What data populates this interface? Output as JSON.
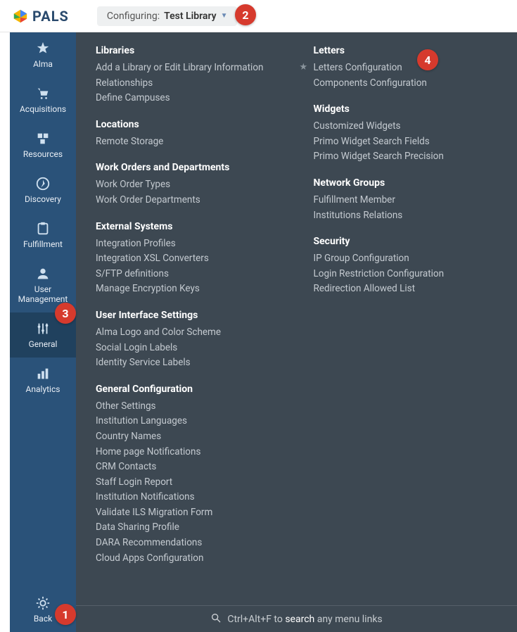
{
  "logo_text": "PALS",
  "config_label": "Configuring:",
  "config_value": "Test Library",
  "annotations": {
    "a1": "1",
    "a2": "2",
    "a3": "3",
    "a4": "4"
  },
  "sidebar": {
    "alma": "Alma",
    "acquisitions": "Acquisitions",
    "resources": "Resources",
    "discovery": "Discovery",
    "fulfillment": "Fulfillment",
    "user_management": "User Management",
    "general": "General",
    "analytics": "Analytics",
    "back": "Back"
  },
  "col1": {
    "libraries": {
      "title": "Libraries",
      "items": [
        "Add a Library or Edit Library Information",
        "Relationships",
        "Define Campuses"
      ]
    },
    "locations": {
      "title": "Locations",
      "items": [
        "Remote Storage"
      ]
    },
    "work_orders": {
      "title": "Work Orders and Departments",
      "items": [
        "Work Order Types",
        "Work Order Departments"
      ]
    },
    "external": {
      "title": "External Systems",
      "items": [
        "Integration Profiles",
        "Integration XSL Converters",
        "S/FTP definitions",
        "Manage Encryption Keys"
      ]
    },
    "ui_settings": {
      "title": "User Interface Settings",
      "items": [
        "Alma Logo and Color Scheme",
        "Social Login Labels",
        "Identity Service Labels"
      ]
    },
    "general_config": {
      "title": "General Configuration",
      "items": [
        "Other Settings",
        "Institution Languages",
        "Country Names",
        "Home page Notifications",
        "CRM Contacts",
        "Staff Login Report",
        "Institution Notifications",
        "Validate ILS Migration Form",
        "Data Sharing Profile",
        "DARA Recommendations",
        "Cloud Apps Configuration"
      ]
    }
  },
  "col2": {
    "letters": {
      "title": "Letters",
      "items": [
        "Letters Configuration",
        "Components Configuration"
      ],
      "starred": 0
    },
    "widgets": {
      "title": "Widgets",
      "items": [
        "Customized Widgets",
        "Primo Widget Search Fields",
        "Primo Widget Search Precision"
      ]
    },
    "network": {
      "title": "Network Groups",
      "items": [
        "Fulfillment Member",
        "Institutions Relations"
      ]
    },
    "security": {
      "title": "Security",
      "items": [
        "IP Group Configuration",
        "Login Restriction Configuration",
        "Redirection Allowed List"
      ]
    }
  },
  "search_hint_pre": "Ctrl+Alt+F to ",
  "search_hint_strong": "search",
  "search_hint_post": " any menu links",
  "colors": {
    "sidebar_bg": "#2a5279",
    "main_bg": "#3d4852",
    "annotation_bg": "#d63a2d"
  }
}
